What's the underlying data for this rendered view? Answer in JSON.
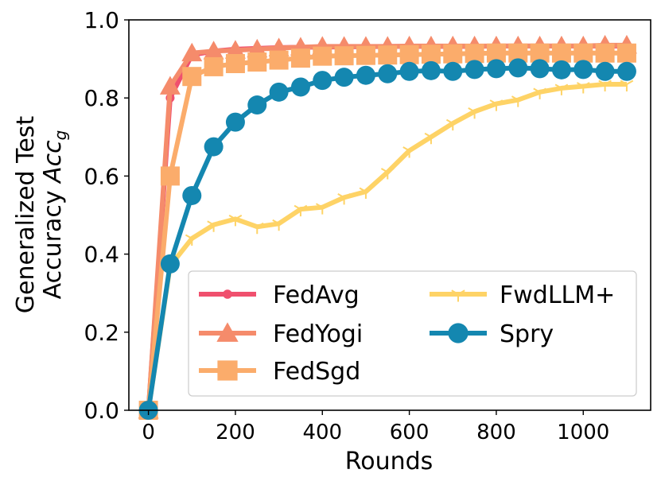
{
  "chart_data": {
    "type": "line",
    "title": "",
    "xlabel": "Rounds",
    "ylabel_line1": "Generalized Test",
    "ylabel_line2": "Accuracy",
    "ylabel_math": "Acc",
    "ylabel_sub": "g",
    "xlim": [
      -45,
      1155
    ],
    "ylim": [
      0.0,
      1.0
    ],
    "xticks": [
      0,
      200,
      400,
      600,
      800,
      1000
    ],
    "xtick_labels": [
      "0",
      "200",
      "400",
      "600",
      "800",
      "1000"
    ],
    "yticks": [
      0.0,
      0.2,
      0.4,
      0.6,
      0.8,
      1.0
    ],
    "ytick_labels": [
      "0.0",
      "0.2",
      "0.4",
      "0.6",
      "0.8",
      "1.0"
    ],
    "grid": false,
    "legend_position": "lower-right",
    "x": [
      0,
      50,
      100,
      150,
      200,
      250,
      300,
      350,
      400,
      450,
      500,
      550,
      600,
      650,
      700,
      750,
      800,
      850,
      900,
      950,
      1000,
      1050,
      1100
    ],
    "series": [
      {
        "name": "FedAvg",
        "color": "#f0506e",
        "marker": "dot",
        "values": [
          0.0,
          0.8,
          0.91,
          0.92,
          0.925,
          0.927,
          0.929,
          0.93,
          0.93,
          0.931,
          0.931,
          0.932,
          0.932,
          0.932,
          0.932,
          0.932,
          0.933,
          0.933,
          0.933,
          0.933,
          0.933,
          0.933,
          0.933
        ]
      },
      {
        "name": "FedYogi",
        "color": "#f58b6b",
        "marker": "triangle",
        "values": [
          0.0,
          0.83,
          0.915,
          0.92,
          0.922,
          0.925,
          0.928,
          0.93,
          0.932,
          0.932,
          0.932,
          0.932,
          0.933,
          0.933,
          0.933,
          0.933,
          0.933,
          0.933,
          0.933,
          0.933,
          0.933,
          0.935,
          0.935
        ]
      },
      {
        "name": "FedSgd",
        "color": "#fbac6b",
        "marker": "square",
        "values": [
          0.0,
          0.6,
          0.855,
          0.88,
          0.888,
          0.892,
          0.897,
          0.902,
          0.907,
          0.908,
          0.909,
          0.91,
          0.911,
          0.912,
          0.913,
          0.914,
          0.915,
          0.915,
          0.915,
          0.915,
          0.915,
          0.915,
          0.915
        ]
      },
      {
        "name": "FwdLLM+",
        "color": "#fed366",
        "marker": "tri_down",
        "values": [
          0.0,
          0.37,
          0.44,
          0.475,
          0.49,
          0.47,
          0.478,
          0.515,
          0.52,
          0.545,
          0.56,
          0.61,
          0.665,
          0.7,
          0.735,
          0.765,
          0.785,
          0.795,
          0.815,
          0.825,
          0.83,
          0.835,
          0.835
        ]
      },
      {
        "name": "Spry",
        "color": "#1487b0",
        "marker": "circle",
        "values": [
          0.0,
          0.375,
          0.55,
          0.675,
          0.738,
          0.782,
          0.815,
          0.828,
          0.845,
          0.853,
          0.858,
          0.862,
          0.868,
          0.87,
          0.868,
          0.873,
          0.875,
          0.877,
          0.875,
          0.872,
          0.873,
          0.868,
          0.868
        ]
      }
    ]
  }
}
